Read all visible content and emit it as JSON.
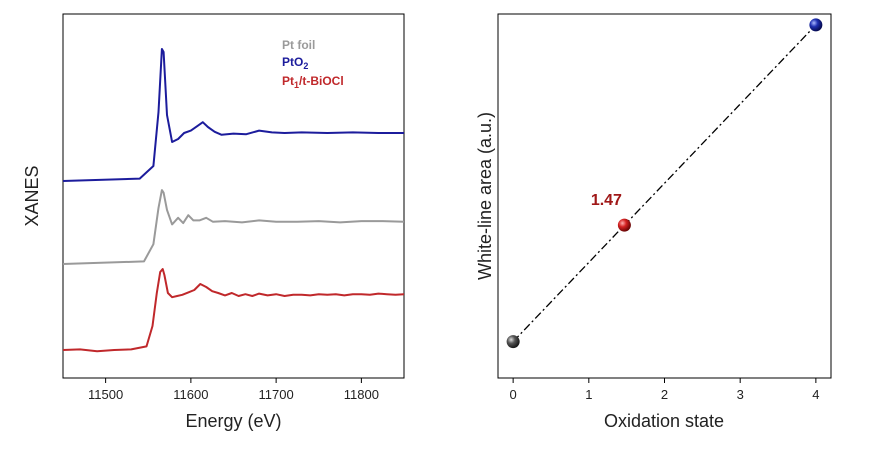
{
  "chart_data": [
    {
      "type": "line",
      "title": "",
      "xlabel": "Energy (eV)",
      "ylabel": "XANES",
      "xlim": [
        11450,
        11850
      ],
      "xticks": [
        11500,
        11600,
        11700,
        11800
      ],
      "yticks_shown": false,
      "grid": false,
      "legend": {
        "placement": "top-right",
        "entries": [
          {
            "name": "Pt foil",
            "color": "#9a9a9a"
          },
          {
            "name": "PtO",
            "subscript": "2",
            "color": "#1c1c9c"
          },
          {
            "name": "Pt",
            "subscript": "1",
            "suffix": "/t-BiOCl",
            "color": "#c0282b"
          }
        ]
      },
      "series": [
        {
          "name": "PtO2",
          "color": "#1c1c9c",
          "x": [
            11450,
            11540,
            11556,
            11562,
            11566,
            11568,
            11572,
            11578,
            11585,
            11592,
            11600,
            11608,
            11614,
            11620,
            11628,
            11636,
            11650,
            11665,
            11680,
            11695,
            11710,
            11730,
            11760,
            11790,
            11820,
            11850
          ],
          "y": [
            0.0,
            0.04,
            0.25,
            1.15,
            2.2,
            2.15,
            1.1,
            0.65,
            0.7,
            0.8,
            0.84,
            0.92,
            0.98,
            0.9,
            0.82,
            0.77,
            0.79,
            0.78,
            0.84,
            0.81,
            0.8,
            0.81,
            0.8,
            0.81,
            0.8,
            0.8
          ]
        },
        {
          "name": "Pt foil",
          "color": "#9a9a9a",
          "x": [
            11450,
            11545,
            11556,
            11562,
            11566,
            11568,
            11572,
            11578,
            11585,
            11591,
            11597,
            11603,
            11610,
            11618,
            11626,
            11640,
            11660,
            11680,
            11700,
            11725,
            11750,
            11775,
            11800,
            11825,
            11850
          ],
          "y": [
            0.0,
            0.04,
            0.3,
            0.85,
            1.12,
            1.08,
            0.82,
            0.6,
            0.7,
            0.62,
            0.74,
            0.66,
            0.66,
            0.7,
            0.64,
            0.65,
            0.63,
            0.66,
            0.64,
            0.64,
            0.65,
            0.63,
            0.65,
            0.65,
            0.64
          ]
        },
        {
          "name": "Pt1/t-BiOCl",
          "color": "#c0282b",
          "x": [
            11450,
            11470,
            11490,
            11510,
            11530,
            11548,
            11555,
            11560,
            11564,
            11567,
            11569,
            11573,
            11578,
            11584,
            11590,
            11597,
            11604,
            11611,
            11618,
            11625,
            11632,
            11640,
            11648,
            11656,
            11664,
            11672,
            11680,
            11690,
            11700,
            11710,
            11720,
            11730,
            11740,
            11750,
            11760,
            11770,
            11780,
            11790,
            11800,
            11810,
            11820,
            11830,
            11840,
            11850
          ],
          "y": [
            0.0,
            0.01,
            -0.02,
            0.0,
            0.01,
            0.06,
            0.4,
            0.95,
            1.3,
            1.35,
            1.25,
            0.95,
            0.88,
            0.9,
            0.92,
            0.96,
            1.0,
            1.1,
            1.05,
            0.98,
            0.95,
            0.91,
            0.95,
            0.9,
            0.93,
            0.9,
            0.94,
            0.91,
            0.93,
            0.9,
            0.92,
            0.92,
            0.91,
            0.93,
            0.92,
            0.93,
            0.91,
            0.93,
            0.93,
            0.92,
            0.94,
            0.93,
            0.92,
            0.93
          ]
        }
      ]
    },
    {
      "type": "scatter",
      "title": "",
      "xlabel": "Oxidation state",
      "ylabel": "White-line area (a.u.)",
      "xlim": [
        -0.2,
        4.2
      ],
      "ylim": [
        0,
        1
      ],
      "xticks": [
        0,
        1,
        2,
        3,
        4
      ],
      "yticks_shown": false,
      "grid": false,
      "fit_line": {
        "style": "dash-dot",
        "color": "#000000",
        "from": [
          0,
          0.1
        ],
        "to": [
          4,
          0.97
        ]
      },
      "points": [
        {
          "x": 0,
          "y": 0.1,
          "color": "#555555",
          "label": ""
        },
        {
          "x": 1.47,
          "y": 0.42,
          "color": "#c0282b",
          "label": "1.47"
        },
        {
          "x": 4,
          "y": 0.97,
          "color": "#1e2fb0",
          "label": ""
        }
      ],
      "annotations": [
        {
          "text": "1.47",
          "color": "#a01818",
          "anchor_point": 1
        }
      ]
    }
  ]
}
